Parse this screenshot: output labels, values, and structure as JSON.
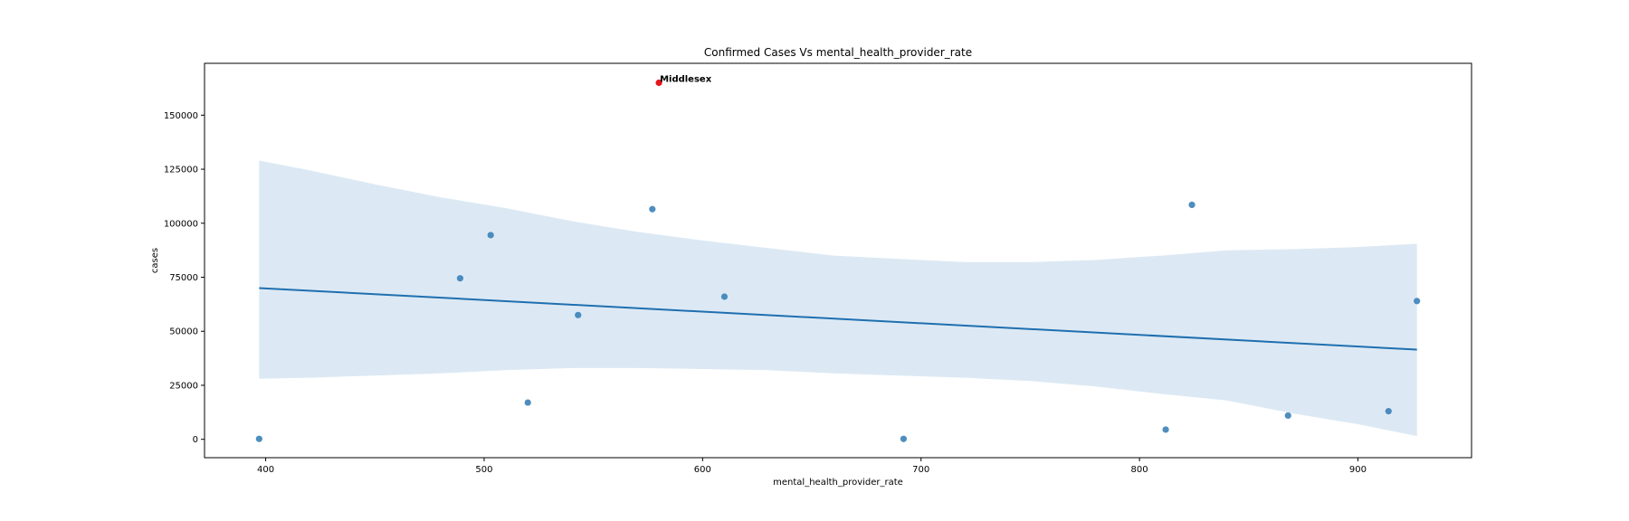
{
  "chart_data": {
    "type": "scatter",
    "title": "Confirmed Cases Vs mental_health_provider_rate",
    "xlabel": "mental_health_provider_rate",
    "ylabel": "cases",
    "xlim": [
      372,
      952
    ],
    "ylim": [
      -8500,
      174000
    ],
    "xticks": [
      400,
      500,
      600,
      700,
      800,
      900
    ],
    "yticks": [
      0,
      25000,
      50000,
      75000,
      100000,
      125000,
      150000
    ],
    "grid": false,
    "legend": "none",
    "point_color": "#3b82b8",
    "highlight_color": "#e8141c",
    "line_color": "#1f6fb0",
    "band_color": "#dce9f4",
    "points": [
      {
        "x": 397,
        "y": 200
      },
      {
        "x": 489,
        "y": 74500
      },
      {
        "x": 503,
        "y": 94500
      },
      {
        "x": 520,
        "y": 17000
      },
      {
        "x": 543,
        "y": 57500
      },
      {
        "x": 577,
        "y": 106500
      },
      {
        "x": 610,
        "y": 66000
      },
      {
        "x": 692,
        "y": 200
      },
      {
        "x": 812,
        "y": 4500
      },
      {
        "x": 824,
        "y": 108500
      },
      {
        "x": 868,
        "y": 11000
      },
      {
        "x": 914,
        "y": 13000
      },
      {
        "x": 927,
        "y": 64000
      }
    ],
    "highlight": {
      "x": 580,
      "y": 165000,
      "label": "Middlesex"
    },
    "regression": {
      "x": [
        397,
        927
      ],
      "y": [
        70000,
        41500
      ]
    },
    "confidence_band": [
      {
        "x": 397,
        "lo": 28000,
        "hi": 129000
      },
      {
        "x": 420,
        "lo": 28500,
        "hi": 124500
      },
      {
        "x": 450,
        "lo": 29500,
        "hi": 118000
      },
      {
        "x": 480,
        "lo": 30500,
        "hi": 112000
      },
      {
        "x": 510,
        "lo": 32000,
        "hi": 107000
      },
      {
        "x": 540,
        "lo": 33000,
        "hi": 101000
      },
      {
        "x": 570,
        "lo": 33000,
        "hi": 96000
      },
      {
        "x": 600,
        "lo": 32500,
        "hi": 92000
      },
      {
        "x": 630,
        "lo": 32000,
        "hi": 88500
      },
      {
        "x": 660,
        "lo": 30500,
        "hi": 85000
      },
      {
        "x": 690,
        "lo": 29500,
        "hi": 83500
      },
      {
        "x": 720,
        "lo": 28500,
        "hi": 82000
      },
      {
        "x": 750,
        "lo": 27000,
        "hi": 82000
      },
      {
        "x": 780,
        "lo": 24500,
        "hi": 83000
      },
      {
        "x": 810,
        "lo": 21000,
        "hi": 85000
      },
      {
        "x": 840,
        "lo": 18000,
        "hi": 87500
      },
      {
        "x": 870,
        "lo": 12000,
        "hi": 88000
      },
      {
        "x": 900,
        "lo": 7000,
        "hi": 89000
      },
      {
        "x": 927,
        "lo": 1500,
        "hi": 90500
      }
    ]
  }
}
